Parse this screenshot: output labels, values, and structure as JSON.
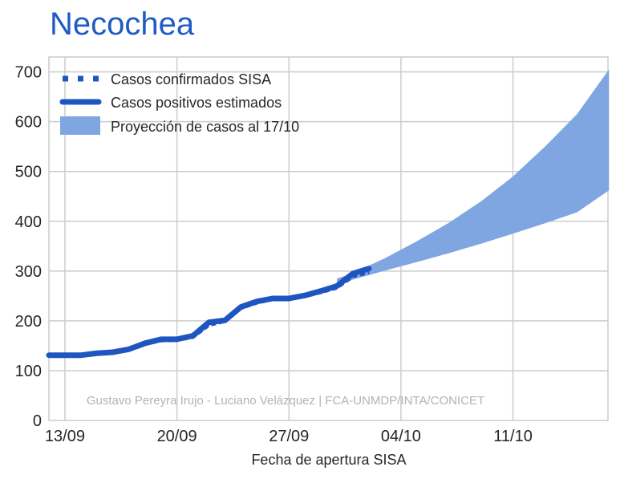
{
  "title": "Necochea",
  "chart_data": {
    "type": "line",
    "title": "Necochea",
    "xlabel": "Fecha de apertura SISA",
    "ylabel": "",
    "x_tick_labels": [
      "13/09",
      "20/09",
      "27/09",
      "04/10",
      "11/10"
    ],
    "y_ticks": [
      0,
      100,
      200,
      300,
      400,
      500,
      600,
      700
    ],
    "ylim": [
      0,
      730
    ],
    "grid": true,
    "legend_position": "top-left",
    "credit": "Gustavo Pereyra Irujo - Luciano Velázquez | FCA-UNMDP/INTA/CONICET",
    "colors": {
      "line": "#1f55c0",
      "band": "#7fa6e0",
      "title": "#1f5bc4",
      "grid": "#cccccc"
    },
    "series": [
      {
        "name": "Casos confirmados SISA",
        "style": "dotted",
        "x": [
          "12/09",
          "13/09",
          "14/09",
          "15/09",
          "16/09",
          "17/09",
          "18/09",
          "19/09",
          "20/09",
          "21/09",
          "22/09",
          "23/09",
          "24/09",
          "25/09",
          "26/09",
          "27/09",
          "28/09",
          "29/09",
          "30/09",
          "01/10",
          "02/10"
        ],
        "values": [
          129,
          129,
          129,
          133,
          135,
          141,
          153,
          160,
          161,
          167,
          191,
          199,
          225,
          236,
          243,
          244,
          249,
          257,
          266,
          289,
          297
        ]
      },
      {
        "name": "Casos positivos estimados",
        "style": "solid",
        "x": [
          "12/09",
          "13/09",
          "14/09",
          "15/09",
          "16/09",
          "17/09",
          "18/09",
          "19/09",
          "20/09",
          "21/09",
          "22/09",
          "23/09",
          "24/09",
          "25/09",
          "26/09",
          "27/09",
          "28/09",
          "29/09",
          "30/09",
          "01/10",
          "02/10"
        ],
        "values": [
          131,
          131,
          131,
          135,
          137,
          143,
          155,
          163,
          163,
          170,
          197,
          201,
          228,
          239,
          245,
          245,
          251,
          260,
          270,
          295,
          305
        ]
      },
      {
        "name": "Proyección de casos al 17/10",
        "style": "band",
        "x": [
          "30/09",
          "01/10",
          "03/10",
          "05/10",
          "07/10",
          "09/10",
          "11/10",
          "13/10",
          "15/10",
          "17/10"
        ],
        "lower": [
          270,
          283,
          301,
          318,
          336,
          355,
          375,
          396,
          418,
          462
        ],
        "upper": [
          285,
          296,
          326,
          360,
          397,
          440,
          490,
          550,
          615,
          705
        ]
      }
    ]
  }
}
